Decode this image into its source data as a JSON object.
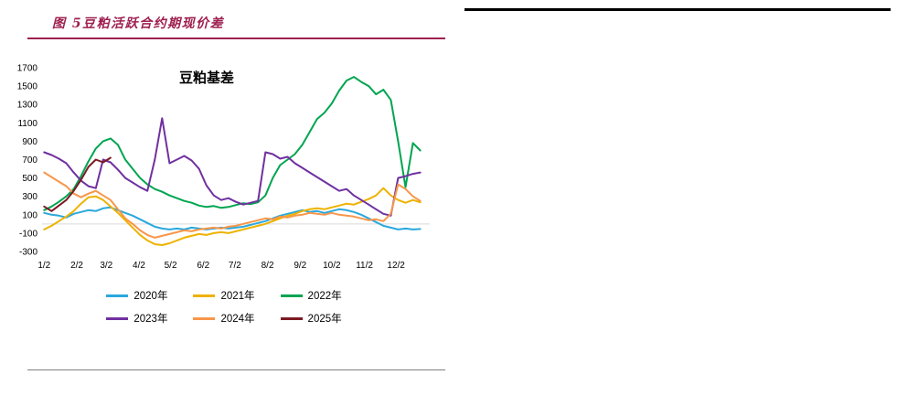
{
  "header": {
    "title": "图 5豆粕活跃合约期现价差"
  },
  "colors": {
    "accent_maroon": "#9E2150",
    "top_divider": "#000000",
    "bottom_divider": "#7f7f7f",
    "gridline": "#d9d9d9"
  },
  "chart_data": {
    "type": "line",
    "title": "豆粕基差",
    "ylim": [
      -300,
      1700
    ],
    "yticks": [
      1700,
      1500,
      1300,
      1100,
      900,
      700,
      500,
      300,
      100,
      -100,
      -300
    ],
    "xlim": [
      0,
      368
    ],
    "xticks": [
      {
        "label": "1/2",
        "day": 2
      },
      {
        "label": "2/2",
        "day": 33
      },
      {
        "label": "3/2",
        "day": 61
      },
      {
        "label": "4/2",
        "day": 92
      },
      {
        "label": "5/2",
        "day": 122
      },
      {
        "label": "6/2",
        "day": 153
      },
      {
        "label": "7/2",
        "day": 183
      },
      {
        "label": "8/2",
        "day": 214
      },
      {
        "label": "9/2",
        "day": 245
      },
      {
        "label": "10/2",
        "day": 275
      },
      {
        "label": "11/2",
        "day": 306
      },
      {
        "label": "12/2",
        "day": 336
      }
    ],
    "x_days": [
      2,
      9,
      16,
      23,
      30,
      37,
      44,
      51,
      58,
      65,
      72,
      79,
      86,
      93,
      100,
      107,
      114,
      121,
      128,
      135,
      142,
      149,
      156,
      163,
      170,
      177,
      184,
      191,
      198,
      205,
      212,
      219,
      226,
      233,
      240,
      247,
      254,
      261,
      268,
      275,
      282,
      289,
      296,
      303,
      310,
      317,
      324,
      331,
      338,
      345,
      352,
      359
    ],
    "gridlines_at": [
      0
    ],
    "legend_position": "bottom",
    "series": [
      {
        "name": "2020年",
        "color": "#2AA8DC",
        "values": [
          120,
          100,
          90,
          70,
          110,
          130,
          150,
          140,
          170,
          180,
          150,
          120,
          90,
          50,
          10,
          -30,
          -50,
          -60,
          -50,
          -60,
          -40,
          -50,
          -60,
          -50,
          -40,
          -50,
          -40,
          -30,
          -10,
          10,
          30,
          60,
          90,
          110,
          130,
          150,
          130,
          140,
          120,
          140,
          160,
          150,
          130,
          100,
          60,
          20,
          -20,
          -40,
          -60,
          -50,
          -60,
          -55
        ]
      },
      {
        "name": "2021年",
        "color": "#EEB200",
        "values": [
          -60,
          -20,
          30,
          80,
          140,
          220,
          290,
          300,
          260,
          190,
          120,
          40,
          -40,
          -120,
          -180,
          -220,
          -230,
          -210,
          -180,
          -150,
          -130,
          -110,
          -120,
          -100,
          -90,
          -100,
          -80,
          -60,
          -40,
          -20,
          0,
          30,
          60,
          90,
          110,
          140,
          160,
          170,
          160,
          180,
          200,
          220,
          210,
          240,
          270,
          310,
          390,
          310,
          260,
          230,
          260,
          235
        ]
      },
      {
        "name": "2022年",
        "color": "#00A550",
        "values": [
          150,
          190,
          240,
          300,
          380,
          520,
          680,
          820,
          900,
          930,
          860,
          700,
          600,
          500,
          430,
          380,
          350,
          310,
          280,
          250,
          230,
          200,
          185,
          195,
          175,
          185,
          205,
          225,
          215,
          235,
          310,
          500,
          640,
          700,
          760,
          860,
          1000,
          1140,
          1210,
          1310,
          1450,
          1560,
          1600,
          1545,
          1500,
          1410,
          1460,
          1350,
          900,
          400,
          880,
          800
        ]
      },
      {
        "name": "2023年",
        "color": "#7030A0",
        "values": [
          780,
          750,
          710,
          660,
          560,
          470,
          410,
          390,
          700,
          670,
          590,
          500,
          450,
          400,
          360,
          700,
          1150,
          660,
          700,
          740,
          690,
          600,
          420,
          310,
          260,
          280,
          240,
          210,
          230,
          250,
          780,
          760,
          710,
          730,
          660,
          610,
          560,
          510,
          460,
          410,
          360,
          380,
          310,
          260,
          210,
          160,
          110,
          90,
          500,
          520,
          545,
          560
        ]
      },
      {
        "name": "2024年",
        "color": "#F7964A",
        "values": [
          560,
          510,
          460,
          410,
          330,
          290,
          330,
          360,
          310,
          260,
          160,
          60,
          0,
          -70,
          -120,
          -150,
          -130,
          -110,
          -90,
          -70,
          -80,
          -60,
          -50,
          -40,
          -50,
          -30,
          -20,
          0,
          20,
          40,
          60,
          50,
          80,
          70,
          90,
          100,
          120,
          110,
          100,
          120,
          100,
          90,
          80,
          60,
          40,
          50,
          30,
          110,
          430,
          380,
          300,
          250
        ]
      },
      {
        "name": "2025年",
        "color": "#7C1A23",
        "values": [
          190,
          140,
          200,
          260,
          360,
          480,
          620,
          700,
          670,
          720,
          null,
          null,
          null,
          null,
          null,
          null,
          null,
          null,
          null,
          null,
          null,
          null,
          null,
          null,
          null,
          null,
          null,
          null,
          null,
          null,
          null,
          null,
          null,
          null,
          null,
          null,
          null,
          null,
          null,
          null,
          null,
          null,
          null,
          null,
          null,
          null,
          null,
          null,
          null,
          null,
          null,
          null
        ]
      }
    ]
  }
}
